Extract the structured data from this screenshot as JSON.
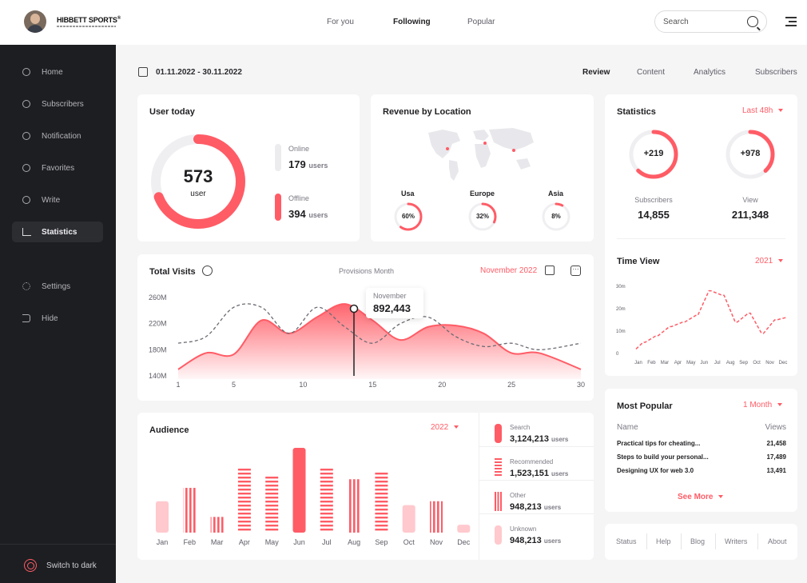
{
  "header": {
    "brand": "HIBBETT SPORTS",
    "brand_mark": "®",
    "nav": [
      {
        "label": "For you",
        "active": false
      },
      {
        "label": "Following",
        "active": true
      },
      {
        "label": "Popular",
        "active": false
      }
    ],
    "search_placeholder": "Search"
  },
  "sidebar": {
    "items": [
      {
        "label": "Home",
        "icon": "home-icon",
        "active": false
      },
      {
        "label": "Subscribers",
        "icon": "user-icon",
        "active": false
      },
      {
        "label": "Notification",
        "icon": "bell-icon",
        "active": false
      },
      {
        "label": "Favorites",
        "icon": "heart-icon",
        "active": false
      },
      {
        "label": "Write",
        "icon": "edit-icon",
        "active": false
      },
      {
        "label": "Statistics",
        "icon": "chart-icon",
        "active": true
      }
    ],
    "secondary": [
      {
        "label": "Settings",
        "icon": "settings-icon"
      },
      {
        "label": "Hide",
        "icon": "hide-icon"
      }
    ],
    "switch_dark": "Switch to dark"
  },
  "subheader": {
    "date_range": "01.11.2022 - 30.11.2022",
    "tabs": [
      {
        "label": "Review",
        "active": true
      },
      {
        "label": "Content",
        "active": false
      },
      {
        "label": "Analytics",
        "active": false
      },
      {
        "label": "Subscribers",
        "active": false
      }
    ]
  },
  "user_today": {
    "title": "User today",
    "total": "573",
    "total_label": "user",
    "online_label": "Online",
    "online_value": "179",
    "offline_label": "Offline",
    "offline_value": "394",
    "unit": "users",
    "offline_fraction": 0.69
  },
  "revenue": {
    "title": "Revenue by Location",
    "regions": [
      {
        "name": "Usa",
        "percent": "60%",
        "fraction": 0.6
      },
      {
        "name": "Europe",
        "percent": "32%",
        "fraction": 0.32
      },
      {
        "name": "Asia",
        "percent": "8%",
        "fraction": 0.08
      }
    ]
  },
  "total_visits": {
    "title": "Total Visits",
    "subtitle": "Provisions Month",
    "period": "November 2022",
    "tooltip_month": "November",
    "tooltip_value": "892,443"
  },
  "audience": {
    "title": "Audience",
    "year": "2022",
    "legend": [
      {
        "label": "Search",
        "value": "3,124,213",
        "style": "solid"
      },
      {
        "label": "Recommended",
        "value": "1,523,151",
        "style": "dashed"
      },
      {
        "label": "Other",
        "value": "948,213",
        "style": "striped"
      },
      {
        "label": "Unknown",
        "value": "948,213",
        "style": "light"
      }
    ],
    "unit": "users"
  },
  "statistics": {
    "title": "Statistics",
    "period": "Last 48h",
    "subscribers_delta": "+219",
    "subscribers_label": "Subscribers",
    "subscribers_value": "14,855",
    "subscribers_fraction": 0.62,
    "view_delta": "+978",
    "view_label": "View",
    "view_value": "211,348",
    "view_fraction": 0.38
  },
  "time_view": {
    "title": "Time View",
    "year": "2021"
  },
  "most_popular": {
    "title": "Most Popular",
    "period": "1 Month",
    "col_name": "Name",
    "col_views": "Views",
    "rows": [
      {
        "name": "Practical tips for cheating...",
        "views": "21,458"
      },
      {
        "name": "Steps to build your personal...",
        "views": "17,489"
      },
      {
        "name": "Designing UX for web 3.0",
        "views": "13,491"
      }
    ],
    "see_more": "See More"
  },
  "footer": {
    "links": [
      "Status",
      "Help",
      "Blog",
      "Writers",
      "About"
    ]
  },
  "colors": {
    "accent": "#ff5c66",
    "accent_light": "#ffc9cd",
    "sidebar": "#1d1e21",
    "ring_track": "#efeff2"
  },
  "chart_data": [
    {
      "type": "area",
      "title": "Total Visits",
      "x": [
        1,
        3,
        5,
        7,
        9,
        11,
        13,
        15,
        17,
        19,
        21,
        23,
        25,
        27,
        30
      ],
      "xticks": [
        1,
        5,
        10,
        15,
        20,
        25,
        30
      ],
      "yticks": [
        "140M",
        "180M",
        "220M",
        "260M"
      ],
      "ylim": [
        140,
        260
      ],
      "series": [
        {
          "values": [
            150,
            175,
            173,
            225,
            205,
            230,
            250,
            225,
            195,
            215,
            217,
            205,
            175,
            175,
            150
          ]
        },
        {
          "values": [
            190,
            200,
            245,
            245,
            205,
            245,
            215,
            190,
            220,
            230,
            200,
            185,
            190,
            180,
            190
          ]
        }
      ]
    },
    {
      "type": "bar",
      "title": "Audience",
      "categories": [
        "Jan",
        "Feb",
        "Mar",
        "Apr",
        "May",
        "Jun",
        "Jul",
        "Aug",
        "Sep",
        "Oct",
        "Nov",
        "Dec"
      ],
      "values": [
        40,
        57,
        20,
        83,
        73,
        108,
        84,
        68,
        78,
        35,
        40,
        10
      ],
      "styles": [
        "light",
        "striped",
        "striped",
        "dashed",
        "dashed",
        "solid",
        "dashed",
        "striped",
        "dashed",
        "light",
        "striped",
        "light"
      ]
    },
    {
      "type": "line",
      "title": "Time View",
      "categories": [
        "Jan",
        "Feb",
        "Mar",
        "Apr",
        "May",
        "Jun",
        "Jul",
        "Aug",
        "Sep",
        "Oct",
        "Nov",
        "Dec"
      ],
      "yticks": [
        "0",
        "10m",
        "20m",
        "30m"
      ],
      "ylim": [
        0,
        30
      ],
      "values": [
        2,
        5,
        8,
        12,
        14,
        17,
        28,
        26,
        14,
        18,
        9,
        15
      ]
    }
  ]
}
